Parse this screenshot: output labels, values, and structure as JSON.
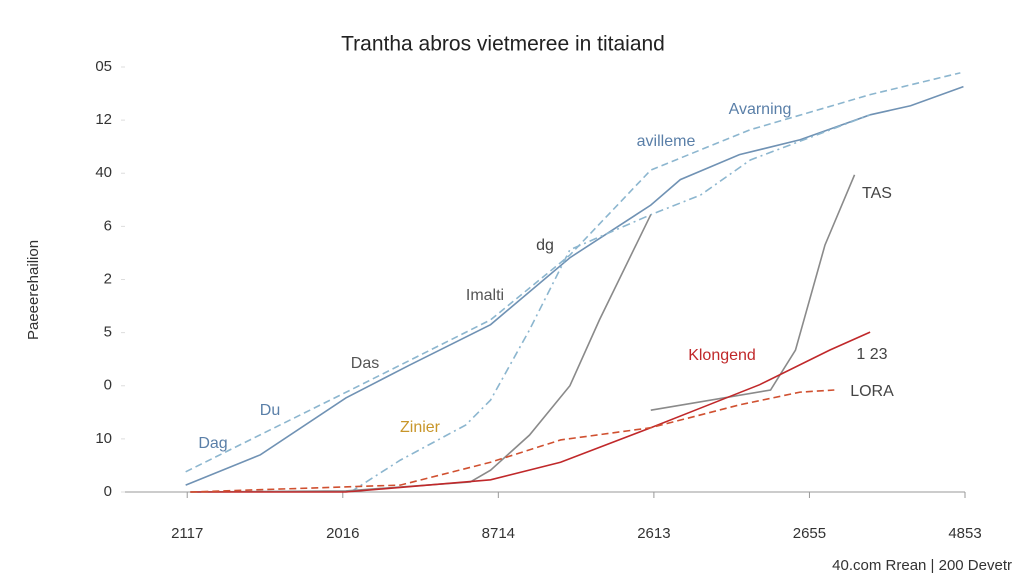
{
  "chart_data": {
    "type": "line",
    "title": "Trantha abros vietmeree in titaiand",
    "y_label": "Paeeerehailion",
    "footer": "40.com Rrean | 200 Devetr",
    "xlim": [
      -0.4,
      5
    ],
    "ylim": [
      0,
      8
    ],
    "xticks": [
      {
        "value": 0,
        "label": "2117"
      },
      {
        "value": 1,
        "label": "2016"
      },
      {
        "value": 2,
        "label": "8714"
      },
      {
        "value": 3,
        "label": "2613"
      },
      {
        "value": 4,
        "label": "2655"
      },
      {
        "value": 5,
        "label": "4853"
      }
    ],
    "yticks": [
      0,
      {
        "value": 1,
        "label": "10"
      },
      {
        "value": 2,
        "label": "0"
      },
      {
        "value": 3,
        "label": "5"
      },
      {
        "value": 4,
        "label": "2"
      },
      {
        "value": 5,
        "label": "6"
      },
      {
        "value": 6,
        "label": "40"
      },
      {
        "value": 7,
        "label": "12"
      },
      {
        "value": 8,
        "label": "05"
      }
    ],
    "grid": false,
    "series": [
      {
        "color": "#7092b4",
        "dash": "solid",
        "x": [
          -0.01,
          0.47,
          1.02,
          1.43,
          1.95,
          2.46,
          2.98,
          3.17,
          3.55,
          3.94,
          4.39,
          4.65,
          4.99
        ],
        "values": [
          0.13,
          0.7,
          1.77,
          2.39,
          3.15,
          4.41,
          5.4,
          5.88,
          6.35,
          6.63,
          7.1,
          7.27,
          7.63
        ]
      },
      {
        "color": "#8cb6cf",
        "dash": "dashed",
        "x": [
          -0.01,
          1.05,
          1.95,
          2.46,
          2.98,
          3.62,
          4.39,
          4.97
        ],
        "values": [
          0.38,
          1.92,
          3.24,
          4.46,
          6.06,
          6.82,
          7.48,
          7.89
        ]
      },
      {
        "color": "#8cb6cf",
        "dash": "dashdot",
        "x": [
          1.05,
          1.37,
          1.79,
          1.95,
          2.2,
          2.46,
          2.98,
          3.3,
          3.62,
          4.39
        ],
        "values": [
          0,
          0.6,
          1.26,
          1.73,
          3.05,
          4.56,
          5.22,
          5.59,
          6.25,
          7.1
        ]
      },
      {
        "color": "#8a8a8a",
        "dash": "solid",
        "x": [
          0.02,
          1.02,
          1.82,
          1.95,
          2.2,
          2.46,
          2.65,
          2.98
        ],
        "values": [
          0,
          0.02,
          0.19,
          0.41,
          1.07,
          2.0,
          3.24,
          5.22
        ]
      },
      {
        "color": "#8a8a8a",
        "dash": "solid",
        "x": [
          2.98,
          3.75,
          3.91,
          4.1,
          4.29
        ],
        "values": [
          1.54,
          1.92,
          2.67,
          4.65,
          5.97
        ]
      },
      {
        "color": "#c0282a",
        "dash": "solid",
        "x": [
          0.02,
          1.02,
          1.95,
          2.4,
          2.98,
          3.3,
          3.68,
          4.13,
          4.39
        ],
        "values": [
          0,
          0,
          0.23,
          0.56,
          1.21,
          1.58,
          2.02,
          2.67,
          3.01
        ]
      },
      {
        "color": "#d05030",
        "dash": "dashed",
        "x": [
          0.02,
          1.37,
          1.95,
          2.4,
          2.98,
          3.55,
          3.94,
          4.16
        ],
        "values": [
          0,
          0.13,
          0.56,
          0.98,
          1.21,
          1.64,
          1.88,
          1.92
        ]
      }
    ],
    "annotations": [
      {
        "text": "Avarning",
        "color": "#5a7fa8"
      },
      {
        "text": "avilleme",
        "color": "#5a7fa8"
      },
      {
        "text": "dg",
        "color": "#444"
      },
      {
        "text": "Imalti",
        "color": "#555"
      },
      {
        "text": "Das",
        "color": "#555"
      },
      {
        "text": "Du",
        "color": "#5a7fa8"
      },
      {
        "text": "Dag",
        "color": "#5a7fa8"
      },
      {
        "text": "Zinier",
        "color": "#c8962a"
      },
      {
        "text": "Klongend",
        "color": "#c0282a"
      },
      {
        "text": "TAS",
        "color": "#444"
      },
      {
        "text": "1 23",
        "color": "#444"
      },
      {
        "text": "LORA",
        "color": "#444"
      }
    ]
  }
}
